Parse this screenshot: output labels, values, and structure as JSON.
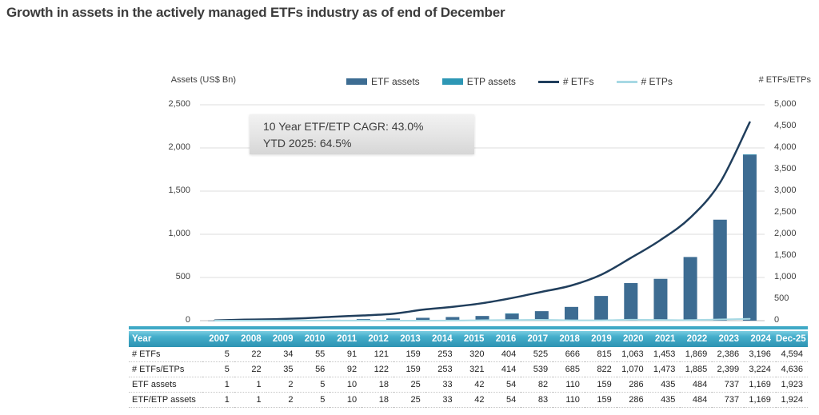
{
  "title": "Growth in assets in the actively managed ETFs industry as of end of December",
  "annotation": {
    "line1": "10 Year ETF/ETP CAGR: 43.0%",
    "line2": "YTD 2025: 64.5%"
  },
  "chart_data": {
    "type": "bar",
    "title": "Growth in assets in the actively managed ETFs industry as of end of December",
    "left_axis": {
      "title": "Assets (US$ Bn)",
      "min": 0,
      "max": 2500,
      "ticks": [
        "2,500",
        "2,000",
        "1,500",
        "1,000",
        "500",
        "0"
      ],
      "tick_values": [
        2500,
        2000,
        1500,
        1000,
        500,
        0
      ]
    },
    "right_axis": {
      "title": "# ETFs/ETPs",
      "min": 0,
      "max": 5000,
      "ticks": [
        "5,000",
        "4,500",
        "4,000",
        "3,500",
        "3,000",
        "2,500",
        "2,000",
        "1,500",
        "1,000",
        "500",
        "0"
      ],
      "tick_values": [
        5000,
        4500,
        4000,
        3500,
        3000,
        2500,
        2000,
        1500,
        1000,
        500,
        0
      ]
    },
    "grid": "horizontal-left-axis-steps-of-500",
    "legend_position": "top",
    "categories": [
      "2007",
      "2008",
      "2009",
      "2010",
      "2011",
      "2012",
      "2013",
      "2014",
      "2015",
      "2016",
      "2017",
      "2018",
      "2019",
      "2020",
      "2021",
      "2022",
      "2023",
      "2024",
      "Dec-25"
    ],
    "series": [
      {
        "name": "ETF assets",
        "type": "bar",
        "axis": "left",
        "color": "#3d6c92",
        "values": [
          1,
          1,
          2,
          5,
          10,
          18,
          25,
          33,
          42,
          54,
          82,
          110,
          159,
          286,
          435,
          484,
          737,
          1169,
          1923
        ]
      },
      {
        "name": "ETP assets",
        "type": "bar",
        "axis": "left",
        "color": "#2d97b5",
        "values": [
          0,
          0,
          0,
          0,
          0,
          0,
          0,
          0,
          0,
          0,
          1,
          0,
          0,
          0,
          0,
          0,
          0,
          0,
          1
        ]
      },
      {
        "name": "# ETFs",
        "type": "line",
        "axis": "right",
        "color": "#203e5c",
        "values": [
          5,
          22,
          34,
          55,
          91,
          121,
          159,
          253,
          320,
          404,
          525,
          666,
          815,
          1063,
          1453,
          1869,
          2386,
          3196,
          4594
        ]
      },
      {
        "name": "# ETPs",
        "type": "line",
        "axis": "right",
        "color": "#a7d9e4",
        "values": [
          0,
          0,
          1,
          1,
          1,
          1,
          0,
          0,
          1,
          10,
          14,
          19,
          7,
          7,
          20,
          16,
          13,
          28,
          42
        ]
      }
    ]
  },
  "table": {
    "header": [
      "Year",
      "2007",
      "2008",
      "2009",
      "2010",
      "2011",
      "2012",
      "2013",
      "2014",
      "2015",
      "2016",
      "2017",
      "2018",
      "2019",
      "2020",
      "2021",
      "2022",
      "2023",
      "2024",
      "Dec-25"
    ],
    "rows": [
      {
        "label": "# ETFs",
        "values": [
          "5",
          "22",
          "34",
          "55",
          "91",
          "121",
          "159",
          "253",
          "320",
          "404",
          "525",
          "666",
          "815",
          "1,063",
          "1,453",
          "1,869",
          "2,386",
          "3,196",
          "4,594"
        ]
      },
      {
        "label": "# ETFs/ETPs",
        "values": [
          "5",
          "22",
          "35",
          "56",
          "92",
          "122",
          "159",
          "253",
          "321",
          "414",
          "539",
          "685",
          "822",
          "1,070",
          "1,473",
          "1,885",
          "2,399",
          "3,224",
          "4,636"
        ]
      },
      {
        "label": "ETF assets",
        "values": [
          "1",
          "1",
          "2",
          "5",
          "10",
          "18",
          "25",
          "33",
          "42",
          "54",
          "82",
          "110",
          "159",
          "286",
          "435",
          "484",
          "737",
          "1,169",
          "1,923"
        ]
      },
      {
        "label": "ETF/ETP assets",
        "values": [
          "1",
          "1",
          "2",
          "5",
          "10",
          "18",
          "25",
          "33",
          "42",
          "54",
          "83",
          "110",
          "159",
          "286",
          "435",
          "484",
          "737",
          "1,169",
          "1,924"
        ]
      }
    ]
  },
  "colors": {
    "etf_assets_bar": "#3d6c92",
    "etp_assets_bar": "#2d97b5",
    "etfs_line": "#203e5c",
    "etps_line": "#a7d9e4",
    "table_header_teal": "#2d93b2",
    "gridline": "#dcdcdc"
  }
}
